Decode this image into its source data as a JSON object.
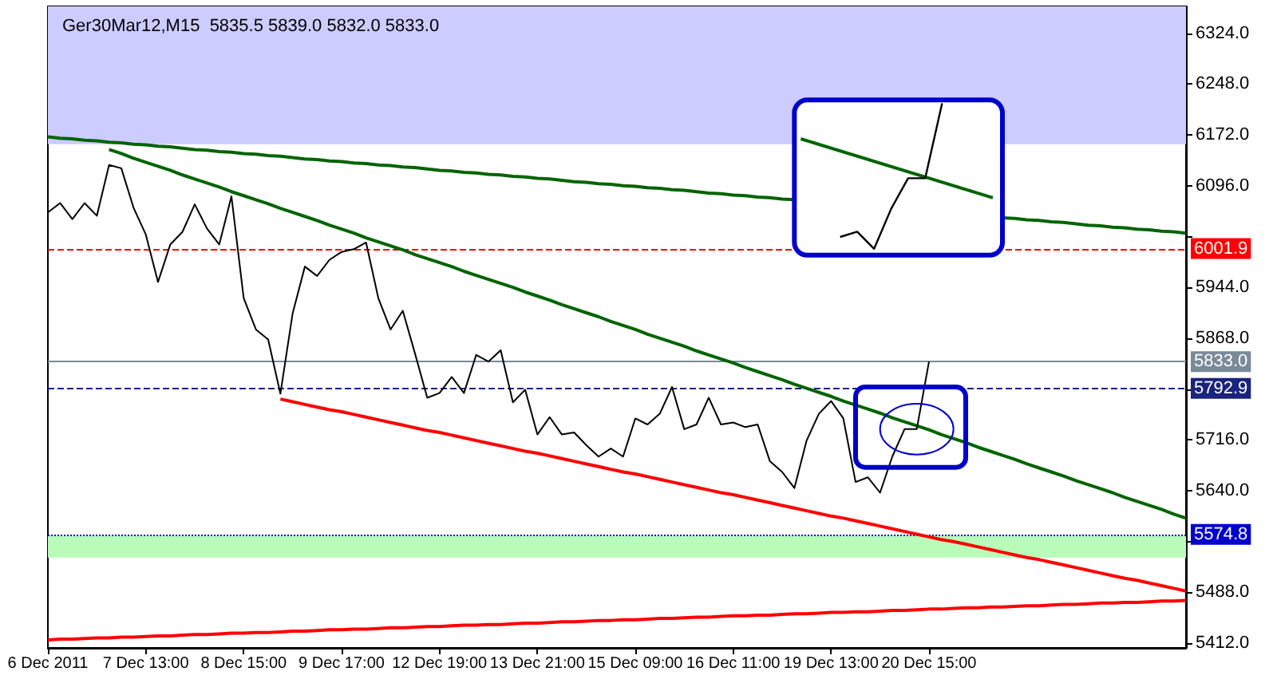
{
  "chart_data": {
    "type": "line",
    "title": "Ger30Mar12,M15  5835.5 5839.0 5832.0 5833.0",
    "categories": [
      "6 Dec 2011",
      null,
      null,
      null,
      null,
      null,
      null,
      null,
      "7 Dec 13:00",
      null,
      null,
      null,
      null,
      null,
      null,
      null,
      "8 Dec 15:00",
      null,
      null,
      null,
      null,
      null,
      null,
      null,
      "9 Dec 17:00",
      null,
      null,
      null,
      null,
      null,
      null,
      null,
      "12 Dec 19:00",
      null,
      null,
      null,
      null,
      null,
      null,
      null,
      "13 Dec 21:00",
      null,
      null,
      null,
      null,
      null,
      null,
      null,
      "15 Dec 09:00",
      null,
      null,
      null,
      null,
      null,
      null,
      null,
      "16 Dec 11:00",
      null,
      null,
      null,
      null,
      null,
      null,
      null,
      "19 Dec 13:00",
      null,
      null,
      null,
      null,
      null,
      null,
      null,
      "20 Dec 15:00",
      null,
      null,
      null,
      null,
      null,
      null,
      null,
      null,
      null,
      null,
      null,
      null,
      null,
      null,
      null,
      null,
      null,
      null,
      null,
      null,
      null
    ],
    "series": [
      {
        "color": "#000000",
        "values": [
          6056,
          6070,
          6046,
          6070,
          6051,
          6127,
          6122,
          6063,
          6023,
          5952,
          6008,
          6027,
          6068,
          6032,
          6008,
          6080,
          5928,
          5881,
          5866,
          5785,
          5905,
          5975,
          5961,
          5985,
          5997,
          6001,
          6011,
          5928,
          5881,
          5909,
          5845,
          5779,
          5786,
          5810,
          5786,
          5843,
          5833,
          5850,
          5772,
          5791,
          5724,
          5750,
          5724,
          5727,
          5708,
          5691,
          5703,
          5691,
          5748,
          5739,
          5755,
          5795,
          5732,
          5739,
          5779,
          5739,
          5742,
          5735,
          5739,
          5684,
          5668,
          5644,
          5715,
          5755,
          5774,
          5748,
          5653,
          5660,
          5637,
          5691,
          5732,
          5732,
          5833,
          null,
          null,
          null,
          null,
          null,
          null,
          null,
          null,
          null,
          null,
          null,
          null,
          null,
          null,
          null,
          null,
          null,
          null,
          null,
          null,
          null
        ]
      },
      {
        "color": "#006400",
        "values": [
          6169,
          6167,
          6166,
          6164,
          6163,
          6161,
          6160,
          6158,
          6157,
          6155,
          6154,
          6152,
          6150,
          6149,
          6147,
          6146,
          6144,
          6143,
          6141,
          6140,
          6138,
          6136,
          6135,
          6133,
          6132,
          6130,
          6129,
          6127,
          6126,
          6124,
          6123,
          6121,
          6119,
          6118,
          6116,
          6115,
          6113,
          6112,
          6110,
          6109,
          6107,
          6106,
          6104,
          6102,
          6101,
          6099,
          6098,
          6096,
          6095,
          6093,
          6092,
          6090,
          6089,
          6087,
          6085,
          6084,
          6082,
          6081,
          6079,
          6078,
          6076,
          6075,
          null,
          null,
          null,
          null,
          null,
          null,
          null,
          null,
          null,
          null,
          null,
          null,
          null,
          null,
          null,
          null,
          6048,
          6047,
          6045,
          6044,
          6042,
          6041,
          6039,
          6037,
          6036,
          6034,
          6033,
          6031,
          6030,
          6028,
          6027,
          6025
        ]
      },
      {
        "color": "#006400",
        "values": [
          null,
          null,
          null,
          null,
          null,
          6150,
          6144,
          6137,
          6131,
          6125,
          6119,
          6112,
          6106,
          6100,
          6094,
          6087,
          6081,
          6075,
          6069,
          6062,
          6056,
          6050,
          6044,
          6037,
          6031,
          6025,
          6018,
          6012,
          6006,
          6000,
          5993,
          5987,
          5981,
          5975,
          5968,
          5962,
          5956,
          5950,
          5944,
          5937,
          5931,
          5925,
          5918,
          5912,
          5906,
          5900,
          5893,
          5887,
          5881,
          5874,
          5868,
          5862,
          5856,
          5849,
          5843,
          5837,
          5831,
          5824,
          5818,
          5812,
          5806,
          5799,
          5793,
          5787,
          5781,
          5774,
          5768,
          5762,
          5756,
          5749,
          5743,
          5737,
          5731,
          5724,
          5718,
          5712,
          5705,
          5699,
          5693,
          5687,
          5680,
          5674,
          5668,
          5662,
          5655,
          5649,
          5643,
          5637,
          5630,
          5624,
          5618,
          5612,
          5605,
          5599
        ]
      },
      {
        "color": "#ff0000",
        "values": [
          null,
          null,
          null,
          null,
          null,
          null,
          null,
          null,
          null,
          null,
          null,
          null,
          null,
          null,
          null,
          null,
          null,
          null,
          null,
          5777,
          5773,
          5769,
          5765,
          5761,
          5758,
          5754,
          5750,
          5746,
          5742,
          5738,
          5734,
          5730,
          5727,
          5723,
          5719,
          5715,
          5711,
          5707,
          5703,
          5699,
          5696,
          5692,
          5688,
          5684,
          5680,
          5676,
          5672,
          5668,
          5665,
          5661,
          5657,
          5653,
          5649,
          5645,
          5641,
          5637,
          5634,
          5630,
          5626,
          5622,
          5618,
          5614,
          5610,
          5606,
          5602,
          5599,
          5595,
          5591,
          5587,
          5583,
          5579,
          5575,
          5571,
          5567,
          5564,
          5560,
          5556,
          5552,
          5548,
          5544,
          5540,
          5537,
          5533,
          5529,
          5525,
          5521,
          5517,
          5513,
          5509,
          5506,
          5502,
          5498,
          5494,
          5490
        ]
      },
      {
        "color": "#ff0000",
        "values": [
          5417,
          5418,
          5418,
          5419,
          5420,
          5420,
          5421,
          5421,
          5422,
          5423,
          5423,
          5424,
          5425,
          5425,
          5426,
          5427,
          5427,
          5428,
          5428,
          5429,
          5430,
          5430,
          5431,
          5432,
          5432,
          5433,
          5433,
          5434,
          5435,
          5435,
          5436,
          5437,
          5437,
          5438,
          5439,
          5439,
          5440,
          5440,
          5441,
          5442,
          5442,
          5443,
          5444,
          5444,
          5445,
          5446,
          5446,
          5447,
          5447,
          5448,
          5449,
          5449,
          5450,
          5451,
          5451,
          5452,
          5453,
          5453,
          5454,
          5454,
          5455,
          5456,
          5456,
          5457,
          5458,
          5458,
          5459,
          5459,
          5460,
          5461,
          5461,
          5462,
          5463,
          5463,
          5464,
          5465,
          5465,
          5466,
          5466,
          5467,
          5468,
          5468,
          5469,
          5470,
          5470,
          5471,
          5472,
          5472,
          5473,
          5473,
          5474,
          5475,
          5475,
          5476
        ]
      }
    ],
    "ylim": [
      5405,
      6364
    ],
    "yticks": [
      {
        "value": 5412,
        "label": "5412.0"
      },
      {
        "value": 5488,
        "label": "5488.0"
      },
      {
        "value": 5564,
        "label": null
      },
      {
        "value": 5640,
        "label": "5640.0"
      },
      {
        "value": 5716,
        "label": "5716.0"
      },
      {
        "value": 5792,
        "label": null
      },
      {
        "value": 5868,
        "label": "5868.0"
      },
      {
        "value": 5944,
        "label": "5944.0"
      },
      {
        "value": 6020,
        "label": null
      },
      {
        "value": 6096,
        "label": "6096.0"
      },
      {
        "value": 6172,
        "label": "6172.0"
      },
      {
        "value": 6248,
        "label": "6248.0"
      },
      {
        "value": 6324,
        "label": "6324.0"
      }
    ],
    "ref_lines": [
      {
        "axis": "y",
        "value": 6001.9,
        "label": "6001.9",
        "color": "#ff0000",
        "line_style": "dashed"
      },
      {
        "axis": "y",
        "value": 5833.0,
        "label": "5833.0",
        "color": "#7a8a98",
        "line_style": "solid"
      },
      {
        "axis": "y",
        "value": 5792.9,
        "label": "5792.9",
        "color": "#1a237e",
        "line_style": "dashed"
      },
      {
        "axis": "y",
        "value": 5574.8,
        "label": "5574.8",
        "color": "#0000cc",
        "line_style": "dotted"
      }
    ],
    "bands": [
      {
        "axis": "y",
        "from": 5540,
        "to": 5573,
        "color": "#b9fbb9"
      },
      {
        "axis": "y",
        "from": 6158,
        "to": 6364,
        "color": "#ccccff"
      }
    ],
    "grid": false,
    "marker": "none",
    "line_style": "solid"
  }
}
